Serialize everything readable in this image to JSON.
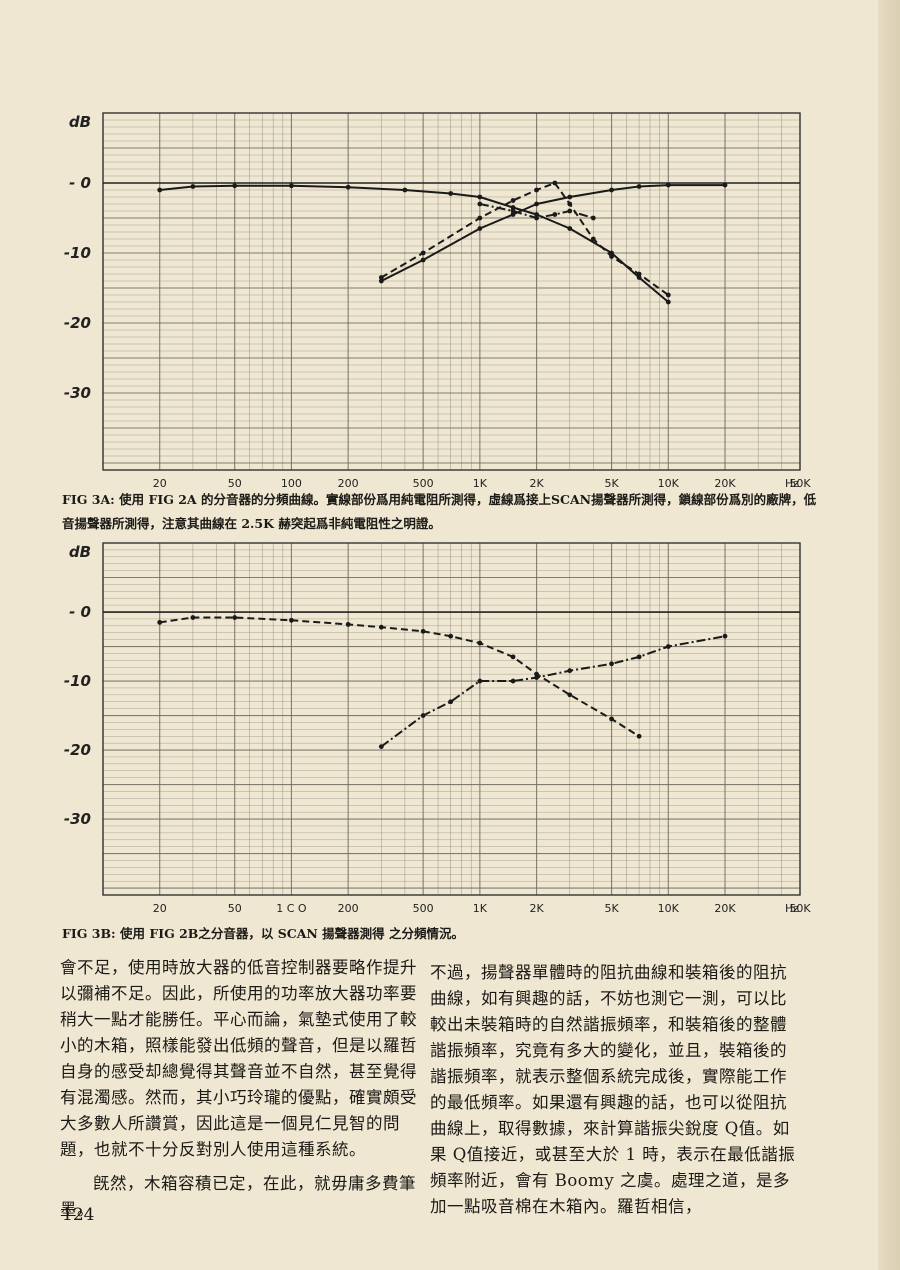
{
  "chart_data": [
    {
      "type": "line",
      "figure_label": "FIG 3A:",
      "caption": "使用 FIG 2A 的分音器的分頻曲線。實線部份爲用純電阻所測得，虛線爲接上SCAN揚聲器所測得，鎖線部份爲別的廠牌，低音揚聲器所測得，注意其曲線在 2.5K 赫突起爲非純電阻性之明證。",
      "xscale": "log",
      "xlim": [
        10,
        50000
      ],
      "ylim": [
        -41,
        10
      ],
      "y_unit_label": "dB",
      "yticks": [
        {
          "v": 0,
          "label": "- 0"
        },
        {
          "v": -10,
          "label": "-10"
        },
        {
          "v": -20,
          "label": "-20"
        },
        {
          "v": -30,
          "label": "-30"
        }
      ],
      "xticks": [
        {
          "v": 20,
          "label": "20"
        },
        {
          "v": 50,
          "label": "50"
        },
        {
          "v": 100,
          "label": "100"
        },
        {
          "v": 200,
          "label": "200"
        },
        {
          "v": 500,
          "label": "500"
        },
        {
          "v": 1000,
          "label": "1K"
        },
        {
          "v": 2000,
          "label": "2K"
        },
        {
          "v": 5000,
          "label": "5K"
        },
        {
          "v": 10000,
          "label": "10K"
        },
        {
          "v": 20000,
          "label": "20K"
        },
        {
          "v": 50000,
          "label": "50K"
        }
      ],
      "x_unit_label": "Hz",
      "grid": true,
      "series": [
        {
          "style": "solid",
          "x": [
            20,
            30,
            50,
            100,
            200,
            400,
            700,
            1000,
            1500,
            2000,
            3000,
            5000,
            7000,
            10000
          ],
          "y": [
            -1,
            -0.5,
            -0.4,
            -0.4,
            -0.6,
            -1,
            -1.5,
            -2,
            -3.5,
            -4.5,
            -6.5,
            -10,
            -13.5,
            -17
          ]
        },
        {
          "style": "solid",
          "x": [
            300,
            500,
            1000,
            1500,
            2000,
            3000,
            5000,
            7000,
            10000,
            20000
          ],
          "y": [
            -14,
            -11,
            -6.5,
            -4.5,
            -3,
            -2,
            -1,
            -0.5,
            -0.3,
            -0.3
          ]
        },
        {
          "style": "dashed",
          "x": [
            300,
            500,
            1000,
            1500,
            2000,
            2500,
            3000,
            4000,
            5000,
            7000,
            10000
          ],
          "y": [
            -13.5,
            -10,
            -5,
            -2.5,
            -1,
            0,
            -3,
            -8,
            -10.5,
            -13,
            -16
          ]
        },
        {
          "style": "dashdot",
          "x": [
            1000,
            1500,
            2000,
            2500,
            3000,
            4000
          ],
          "y": [
            -3,
            -4,
            -5,
            -4.5,
            -4,
            -5
          ]
        }
      ]
    },
    {
      "type": "line",
      "figure_label": "FIG 3B:",
      "caption": "使用 FIG 2B之分音器，以 SCAN 揚聲器測得 之分頻情況。",
      "xscale": "log",
      "xlim": [
        10,
        50000
      ],
      "ylim": [
        -41,
        10
      ],
      "y_unit_label": "dB",
      "yticks": [
        {
          "v": 0,
          "label": "- 0"
        },
        {
          "v": -10,
          "label": "-10"
        },
        {
          "v": -20,
          "label": "-20"
        },
        {
          "v": -30,
          "label": "-30"
        }
      ],
      "xticks": [
        {
          "v": 20,
          "label": "20"
        },
        {
          "v": 50,
          "label": "50"
        },
        {
          "v": 100,
          "label": "1 C O"
        },
        {
          "v": 200,
          "label": "200"
        },
        {
          "v": 500,
          "label": "500"
        },
        {
          "v": 1000,
          "label": "1K"
        },
        {
          "v": 2000,
          "label": "2K"
        },
        {
          "v": 5000,
          "label": "5K"
        },
        {
          "v": 10000,
          "label": "10K"
        },
        {
          "v": 20000,
          "label": "20K"
        },
        {
          "v": 50000,
          "label": "50K"
        }
      ],
      "x_unit_label": "Hz",
      "grid": true,
      "series": [
        {
          "style": "dashed",
          "x": [
            20,
            30,
            50,
            100,
            200,
            300,
            500,
            700,
            1000,
            1500,
            2000,
            3000,
            5000,
            7000
          ],
          "y": [
            -1.5,
            -0.8,
            -0.8,
            -1.2,
            -1.8,
            -2.2,
            -2.8,
            -3.5,
            -4.5,
            -6.5,
            -9,
            -12,
            -15.5,
            -18
          ]
        },
        {
          "style": "dashdot",
          "x": [
            300,
            500,
            700,
            1000,
            1500,
            2000,
            3000,
            5000,
            7000,
            10000,
            20000
          ],
          "y": [
            -19.5,
            -15,
            -13,
            -10,
            -10,
            -9.5,
            -8.5,
            -7.5,
            -6.5,
            -5,
            -3.5
          ]
        }
      ]
    }
  ],
  "body": {
    "left_column": [
      "會不足，使用時放大器的低音控制器要略作提升以彌補不足。因此，所使用的功率放大器功率要稍大一點才能勝任。平心而論，氣墊式使用了較小的木箱，照樣能發出低頻的聲音，但是以羅哲自身的感受却總覺得其聲音並不自然，甚至覺得有混濁感。然而，其小巧玲瓏的優點，確實頗受大多數人所讚賞，因此這是一個見仁見智的問題，也就不十分反對別人使用這種系統。",
      "旣然，木箱容積已定，在此，就毋庸多費筆墨。"
    ],
    "right_column": "不過，揚聲器單體時的阻抗曲線和裝箱後的阻抗曲線，如有興趣的話，不妨也測它一測，可以比較出未裝箱時的自然諧振頻率，和裝箱後的整體諧振頻率，究竟有多大的變化，並且，裝箱後的諧振頻率，就表示整個系統完成後，實際能工作的最低頻率。如果還有興趣的話，也可以從阻抗曲線上，取得數據，來計算諧振尖銳度 Q值。如果 Q值接近，或甚至大於 1 時，表示在最低諧振頻率附近，會有 Boomy 之虞。處理之道，是多加一點吸音棉在木箱內。羅哲相信，",
    "page_number": "124"
  },
  "colors": {
    "paper": "#efe7d2",
    "ink": "#1c1a16",
    "grid": "#6f6a5e"
  }
}
